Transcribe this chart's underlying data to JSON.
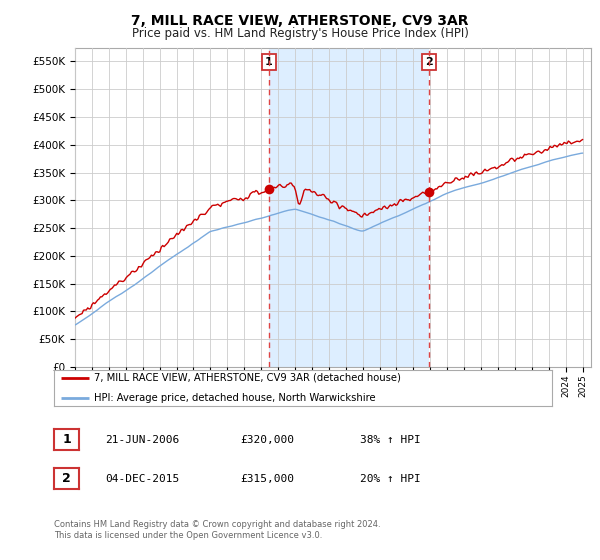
{
  "title": "7, MILL RACE VIEW, ATHERSTONE, CV9 3AR",
  "subtitle": "Price paid vs. HM Land Registry's House Price Index (HPI)",
  "ylabel_ticks": [
    "£0",
    "£50K",
    "£100K",
    "£150K",
    "£200K",
    "£250K",
    "£300K",
    "£350K",
    "£400K",
    "£450K",
    "£500K",
    "£550K"
  ],
  "ytick_values": [
    0,
    50000,
    100000,
    150000,
    200000,
    250000,
    300000,
    350000,
    400000,
    450000,
    500000,
    550000
  ],
  "ylim": [
    0,
    575000
  ],
  "hpi_color": "#7aaadd",
  "price_color": "#cc0000",
  "sale1_x": 2006.47,
  "sale1_price": 320000,
  "sale2_x": 2015.92,
  "sale2_price": 315000,
  "vline_color": "#dd4444",
  "shade_color": "#ddeeff",
  "legend_label_price": "7, MILL RACE VIEW, ATHERSTONE, CV9 3AR (detached house)",
  "legend_label_hpi": "HPI: Average price, detached house, North Warwickshire",
  "footer1": "Contains HM Land Registry data © Crown copyright and database right 2024.",
  "footer2": "This data is licensed under the Open Government Licence v3.0.",
  "table_row1": [
    "1",
    "21-JUN-2006",
    "£320,000",
    "38% ↑ HPI"
  ],
  "table_row2": [
    "2",
    "04-DEC-2015",
    "£315,000",
    "20% ↑ HPI"
  ],
  "bg_color": "#ffffff",
  "grid_color": "#cccccc",
  "xlim_left": 1995.0,
  "xlim_right": 2025.5
}
